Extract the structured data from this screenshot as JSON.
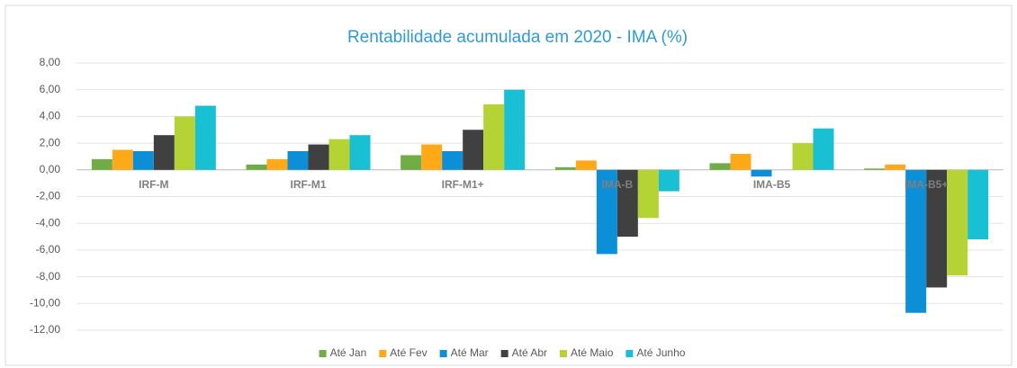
{
  "chart_data": {
    "type": "bar",
    "title": "Rentabilidade acumulada em 2020 - IMA (%)",
    "categories": [
      "IRF-M",
      "IRF-M1",
      "IRF-M1+",
      "IMA-B",
      "IMA-B5",
      "IMA-B5+"
    ],
    "series": [
      {
        "name": "Até Jan",
        "color": "#70ad47",
        "values": [
          0.8,
          0.4,
          1.1,
          0.2,
          0.5,
          0.1
        ]
      },
      {
        "name": "Até Fev",
        "color": "#ffa918",
        "values": [
          1.5,
          0.8,
          1.9,
          0.7,
          1.2,
          0.4
        ]
      },
      {
        "name": "Até Mar",
        "color": "#0c8fd6",
        "values": [
          1.4,
          1.4,
          1.4,
          -6.3,
          -0.5,
          -10.7
        ]
      },
      {
        "name": "Até Abr",
        "color": "#404040",
        "values": [
          2.6,
          1.9,
          3.0,
          -5.0,
          0.0,
          -8.8
        ]
      },
      {
        "name": "Até Maio",
        "color": "#b5d334",
        "values": [
          4.0,
          2.3,
          4.9,
          -3.6,
          2.0,
          -7.9
        ]
      },
      {
        "name": "Até Junho",
        "color": "#19bfd3",
        "values": [
          4.8,
          2.6,
          6.0,
          -1.6,
          3.1,
          -5.2
        ]
      }
    ],
    "ylim": [
      -12,
      8
    ],
    "yticks": [
      {
        "value": -12,
        "label": "-12,00"
      },
      {
        "value": -10,
        "label": "-10,00"
      },
      {
        "value": -8,
        "label": "-8,00"
      },
      {
        "value": -6,
        "label": "-6,00"
      },
      {
        "value": -4,
        "label": "-4,00"
      },
      {
        "value": -2,
        "label": "-2,00"
      },
      {
        "value": 0,
        "label": "0,00"
      },
      {
        "value": 2,
        "label": "2,00"
      },
      {
        "value": 4,
        "label": "4,00"
      },
      {
        "value": 6,
        "label": "6,00"
      },
      {
        "value": 8,
        "label": "8,00"
      }
    ],
    "grid": true,
    "legend": "bottom"
  }
}
